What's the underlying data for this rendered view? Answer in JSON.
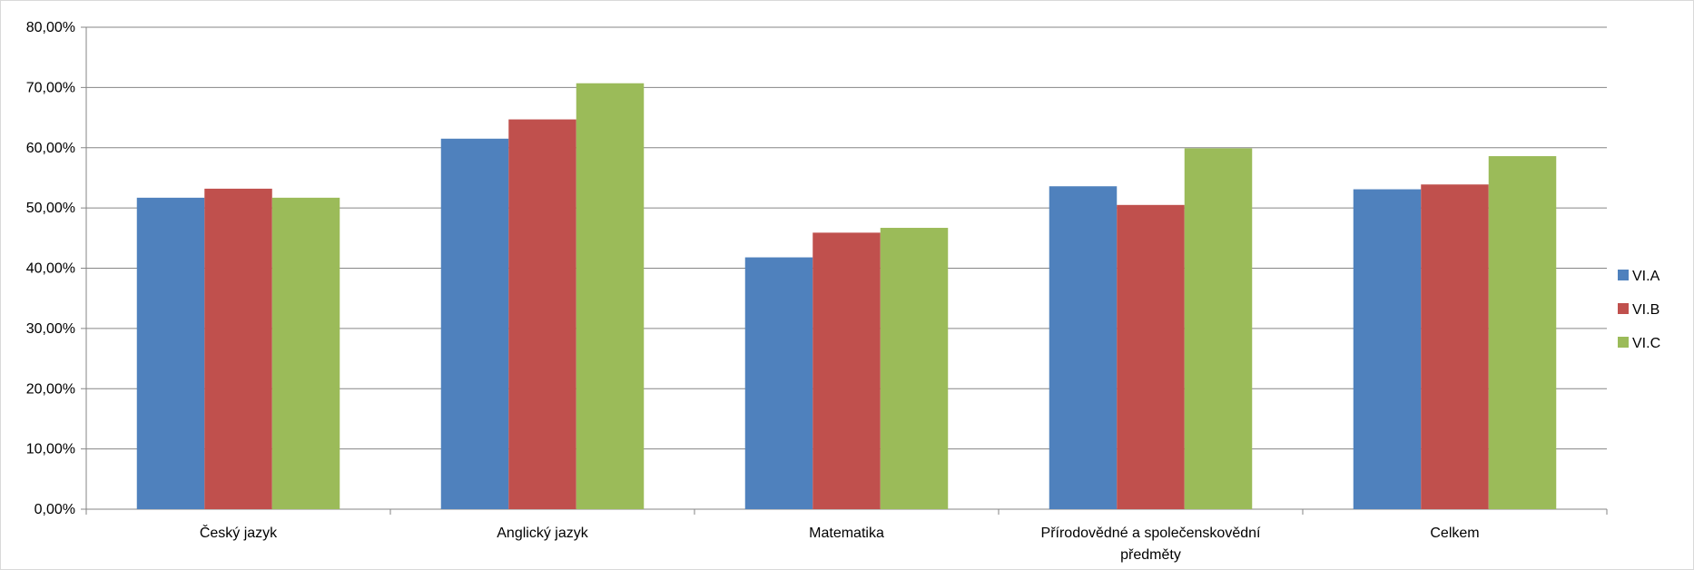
{
  "chart_data": {
    "type": "bar",
    "categories": [
      [
        "Český jazyk"
      ],
      [
        "Anglický jazyk"
      ],
      [
        "Matematika"
      ],
      [
        "Přírodovědné a společenskovědní",
        "předměty"
      ],
      [
        "Celkem"
      ]
    ],
    "series": [
      {
        "name": "VI.A",
        "color": "#4f81bd",
        "values": [
          51.7,
          61.5,
          41.8,
          53.6,
          53.1
        ]
      },
      {
        "name": "VI.B",
        "color": "#c0504d",
        "values": [
          53.2,
          64.7,
          45.9,
          50.5,
          53.9
        ]
      },
      {
        "name": "VI.C",
        "color": "#9bbb59",
        "values": [
          51.7,
          70.7,
          46.7,
          59.9,
          58.6
        ]
      }
    ],
    "y_ticks": [
      "0,00%",
      "10,00%",
      "20,00%",
      "30,00%",
      "40,00%",
      "50,00%",
      "60,00%",
      "70,00%",
      "80,00%"
    ],
    "ylim": [
      0,
      80
    ],
    "y_tick_step": 10,
    "grid": true,
    "gridline_color": "#868686",
    "legend_position": "right"
  }
}
